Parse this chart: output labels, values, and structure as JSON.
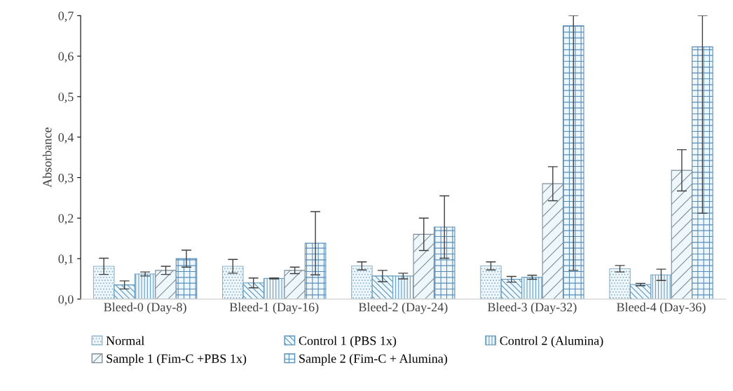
{
  "chart_data": {
    "type": "bar",
    "ylabel": "Absorbance",
    "categories": [
      "Bleed-0 (Day-8)",
      "Bleed-1 (Day-16)",
      "Bleed-2 (Day-24)",
      "Bleed-3 (Day-32)",
      "Bleed-4 (Day-36)"
    ],
    "series": [
      {
        "name": "Normal",
        "color": "#8fb4cc",
        "values": [
          0.081,
          0.081,
          0.082,
          0.082,
          0.075
        ],
        "errors": [
          0.02,
          0.017,
          0.01,
          0.01,
          0.008
        ]
      },
      {
        "name": "Control 1 (PBS 1x)",
        "color": "#5b93b8",
        "values": [
          0.035,
          0.04,
          0.057,
          0.049,
          0.036
        ],
        "errors": [
          0.01,
          0.012,
          0.014,
          0.007,
          0.003
        ]
      },
      {
        "name": "Control 2 (Alumina)",
        "color": "#6e9fc0",
        "values": [
          0.062,
          0.051,
          0.057,
          0.054,
          0.06
        ],
        "errors": [
          0.005,
          0.001,
          0.007,
          0.005,
          0.014
        ]
      },
      {
        "name": "Sample 1 (Fim-C +PBS 1x)",
        "color": "#7f8c95",
        "values": [
          0.071,
          0.071,
          0.16,
          0.285,
          0.318
        ],
        "errors": [
          0.01,
          0.008,
          0.04,
          0.042,
          0.051
        ]
      },
      {
        "name": "Sample 2 (Fim-C + Alumina)",
        "color": "#5a8cb8",
        "values": [
          0.1,
          0.138,
          0.178,
          0.675,
          0.623
        ],
        "errors": [
          0.021,
          0.078,
          0.077,
          [
            0.071,
            0.7
          ],
          [
            0.212,
            0.7
          ]
        ]
      }
    ],
    "ylim": [
      0,
      0.7
    ],
    "yticks": [
      {
        "value": 0,
        "label": "0,0"
      },
      {
        "value": 0.1,
        "label": "0,1"
      },
      {
        "value": 0.2,
        "label": "0,2"
      },
      {
        "value": 0.3,
        "label": "0,3"
      },
      {
        "value": 0.4,
        "label": "0,4"
      },
      {
        "value": 0.5,
        "label": "0,5"
      },
      {
        "value": 0.6,
        "label": "0,6"
      },
      {
        "value": 0.7,
        "label": "0,7"
      }
    ],
    "legend": "bottom",
    "grid": false
  }
}
